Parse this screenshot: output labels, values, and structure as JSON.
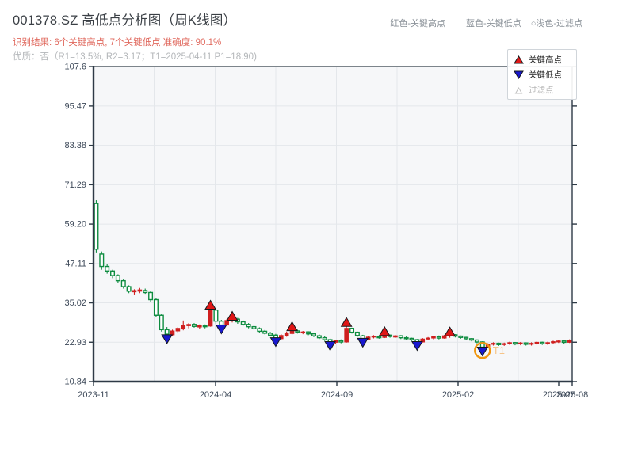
{
  "header": {
    "title": "001378.SZ 高低点分析图（周K线图）",
    "result_line": "识别结果: 6个关键高点, 7个关键低点  准确度: 90.1%",
    "quality_line": "优质：否（R1=13.5%, R2=3.17；T1=2025-04-11 P1=18.90)"
  },
  "header_legend": {
    "items": [
      {
        "label": "红色-关键高点"
      },
      {
        "label": "蓝色-关键低点"
      },
      {
        "label": "○浅色-过滤点"
      }
    ]
  },
  "legend": {
    "items": [
      {
        "label": "关键高点",
        "marker": "up-triangle",
        "color": "#e01616"
      },
      {
        "label": "关键低点",
        "marker": "down-triangle",
        "color": "#1818cf"
      },
      {
        "label": "过滤点",
        "marker": "hollow-triangle",
        "color": "#c0c0c0"
      }
    ]
  },
  "chart_data": {
    "type": "candlestick",
    "title": "001378.SZ 高低点分析图（周K线图）",
    "xlabel": "",
    "ylabel": "",
    "x_tick_labels": [
      "2023-11",
      "2024-04",
      "2024-09",
      "2025-02",
      "2025-07",
      "2025-08"
    ],
    "y_tick_labels": [
      "107.6",
      "95.47",
      "83.38",
      "71.29",
      "59.20",
      "47.11",
      "35.02",
      "22.93",
      "10.84"
    ],
    "y_tick_values": [
      107.6,
      95.47,
      83.38,
      71.29,
      59.2,
      47.11,
      35.02,
      22.93,
      10.84
    ],
    "ylim": [
      10.84,
      107.6
    ],
    "grid": true,
    "legend_position": "upper-right",
    "colors": {
      "up_candle": "#cf1f1f",
      "down_candle": "#0e8c40",
      "key_high_marker": "#e01616",
      "key_low_marker": "#1818cf",
      "marker_edge": "#15181c",
      "t1_circle": "#f0960f",
      "t1_text": "#f6c488",
      "spine": "#2e3a46",
      "tick_label": "#3c4858",
      "gridline": "#e4e7eb",
      "plot_bg": "#f6f7f9"
    },
    "candles_ohlc": [
      [
        65.5,
        66.5,
        50.5,
        51.5
      ],
      [
        50.0,
        50.8,
        45.2,
        46.2
      ],
      [
        46.2,
        47.0,
        44.0,
        44.8
      ],
      [
        44.8,
        45.2,
        42.6,
        43.4
      ],
      [
        43.4,
        43.8,
        41.2,
        41.8
      ],
      [
        41.8,
        42.2,
        39.4,
        40.0
      ],
      [
        40.0,
        40.4,
        38.0,
        38.6
      ],
      [
        38.4,
        39.2,
        37.6,
        38.8
      ],
      [
        38.6,
        39.6,
        38.0,
        39.0
      ],
      [
        38.8,
        39.4,
        37.8,
        38.2
      ],
      [
        38.2,
        38.6,
        35.4,
        36.0
      ],
      [
        36.0,
        36.4,
        30.6,
        31.2
      ],
      [
        31.2,
        31.6,
        26.2,
        26.8
      ],
      [
        26.8,
        27.6,
        24.5,
        25.4
      ],
      [
        25.2,
        26.8,
        24.8,
        26.4
      ],
      [
        26.4,
        27.6,
        25.8,
        27.2
      ],
      [
        27.0,
        29.6,
        26.6,
        28.0
      ],
      [
        28.0,
        28.8,
        27.2,
        28.4
      ],
      [
        28.4,
        28.8,
        27.4,
        27.8
      ],
      [
        27.6,
        28.4,
        27.0,
        28.0
      ],
      [
        28.0,
        28.4,
        27.2,
        27.7
      ],
      [
        27.9,
        33.7,
        27.7,
        32.9
      ],
      [
        32.8,
        33.2,
        28.6,
        29.4
      ],
      [
        29.4,
        29.8,
        27.6,
        28.2
      ],
      [
        28.2,
        30.0,
        28.0,
        29.6
      ],
      [
        29.6,
        30.4,
        29.0,
        30.0
      ],
      [
        30.0,
        30.4,
        28.6,
        29.2
      ],
      [
        29.2,
        29.6,
        28.0,
        28.4
      ],
      [
        28.4,
        28.8,
        27.2,
        27.7
      ],
      [
        27.7,
        28.1,
        26.7,
        27.1
      ],
      [
        27.1,
        27.5,
        25.9,
        26.3
      ],
      [
        26.3,
        26.7,
        25.3,
        25.7
      ],
      [
        25.7,
        26.1,
        24.7,
        25.1
      ],
      [
        25.1,
        25.5,
        23.7,
        24.2
      ],
      [
        24.0,
        25.4,
        23.8,
        25.0
      ],
      [
        25.0,
        26.2,
        24.6,
        25.8
      ],
      [
        25.6,
        27.0,
        25.2,
        26.4
      ],
      [
        26.4,
        26.8,
        25.6,
        26.0
      ],
      [
        25.8,
        26.4,
        25.4,
        26.1
      ],
      [
        26.1,
        26.3,
        25.1,
        25.5
      ],
      [
        25.5,
        25.9,
        24.5,
        24.9
      ],
      [
        24.9,
        25.3,
        23.9,
        24.3
      ],
      [
        24.3,
        24.7,
        23.3,
        23.7
      ],
      [
        23.7,
        24.1,
        22.4,
        22.9
      ],
      [
        22.9,
        23.7,
        22.5,
        23.4
      ],
      [
        23.4,
        23.8,
        22.6,
        23.0
      ],
      [
        23.0,
        28.2,
        22.8,
        27.2
      ],
      [
        27.2,
        27.4,
        25.6,
        26.0
      ],
      [
        26.0,
        26.2,
        24.6,
        25.0
      ],
      [
        24.9,
        25.2,
        23.4,
        23.9
      ],
      [
        23.8,
        24.8,
        23.6,
        24.5
      ],
      [
        24.5,
        25.1,
        24.1,
        24.8
      ],
      [
        24.6,
        25.0,
        24.0,
        24.4
      ],
      [
        24.4,
        25.5,
        24.2,
        25.1
      ],
      [
        25.1,
        25.3,
        24.3,
        24.7
      ],
      [
        24.5,
        25.1,
        24.3,
        24.9
      ],
      [
        24.9,
        25.1,
        23.9,
        24.3
      ],
      [
        24.3,
        24.7,
        23.7,
        24.1
      ],
      [
        24.1,
        24.3,
        23.3,
        23.7
      ],
      [
        23.7,
        23.9,
        22.5,
        23.0
      ],
      [
        23.0,
        24.2,
        22.8,
        23.9
      ],
      [
        23.9,
        24.5,
        23.5,
        24.2
      ],
      [
        24.2,
        24.9,
        23.8,
        24.6
      ],
      [
        24.6,
        25.0,
        23.8,
        24.2
      ],
      [
        24.2,
        25.2,
        24.0,
        24.9
      ],
      [
        24.9,
        25.5,
        24.3,
        25.2
      ],
      [
        25.2,
        25.4,
        24.4,
        24.8
      ],
      [
        24.8,
        25.0,
        24.0,
        24.4
      ],
      [
        24.4,
        24.6,
        23.6,
        24.0
      ],
      [
        24.0,
        24.2,
        23.2,
        23.6
      ],
      [
        23.6,
        23.8,
        22.6,
        23.0
      ],
      [
        23.0,
        23.2,
        20.8,
        21.4
      ],
      [
        21.4,
        22.6,
        21.2,
        22.3
      ],
      [
        22.3,
        22.9,
        21.9,
        22.6
      ],
      [
        22.6,
        22.8,
        21.8,
        22.2
      ],
      [
        22.2,
        22.8,
        21.8,
        22.5
      ],
      [
        22.5,
        23.1,
        22.1,
        22.8
      ],
      [
        22.8,
        23.0,
        22.0,
        22.4
      ],
      [
        22.4,
        23.0,
        22.0,
        22.7
      ],
      [
        22.7,
        22.9,
        21.9,
        22.3
      ],
      [
        22.3,
        22.9,
        21.9,
        22.6
      ],
      [
        22.6,
        23.2,
        22.2,
        22.9
      ],
      [
        22.9,
        23.1,
        22.1,
        22.5
      ],
      [
        22.5,
        23.1,
        22.1,
        22.8
      ],
      [
        22.8,
        23.4,
        22.4,
        23.1
      ],
      [
        23.1,
        23.5,
        22.7,
        23.3
      ],
      [
        23.3,
        23.5,
        22.5,
        22.9
      ],
      [
        22.9,
        23.8,
        22.7,
        23.5
      ]
    ],
    "key_highs": [
      {
        "index": 21,
        "price": 34.3
      },
      {
        "index": 25,
        "price": 30.9
      },
      {
        "index": 36,
        "price": 27.7
      },
      {
        "index": 46,
        "price": 29.0
      },
      {
        "index": 53,
        "price": 26.2
      },
      {
        "index": 65,
        "price": 26.1
      }
    ],
    "key_lows": [
      {
        "index": 13,
        "price": 24.0
      },
      {
        "index": 23,
        "price": 27.0
      },
      {
        "index": 33,
        "price": 23.1
      },
      {
        "index": 43,
        "price": 21.9
      },
      {
        "index": 49,
        "price": 22.9
      },
      {
        "index": 59,
        "price": 21.9
      },
      {
        "index": 71,
        "price": 20.2
      }
    ],
    "t1_marker": {
      "index": 71,
      "price": 20.4,
      "label": "T1"
    }
  }
}
